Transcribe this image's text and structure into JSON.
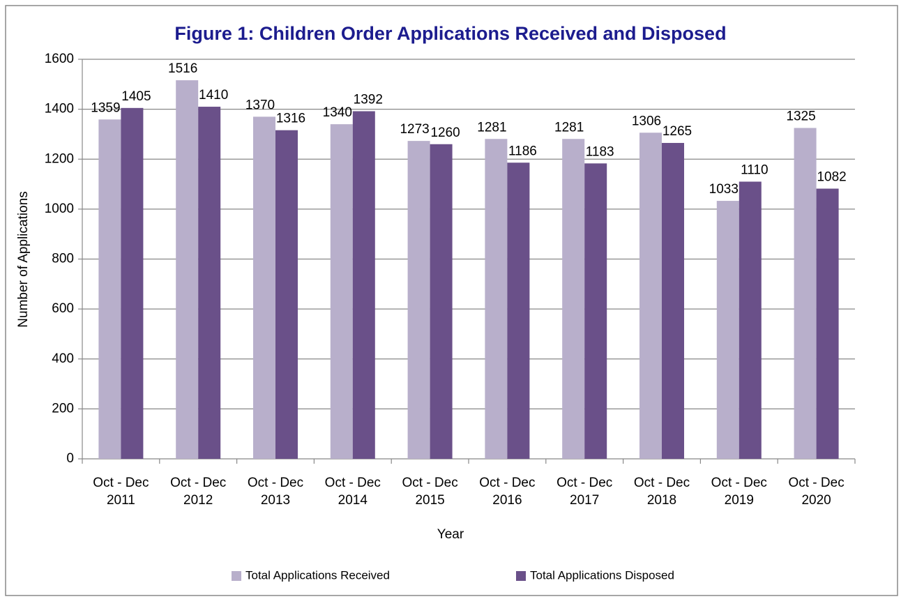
{
  "chart_data": {
    "type": "bar",
    "title": "Figure 1: Children Order Applications  Received and Disposed",
    "x_label": "Year",
    "y_label": "Number of Applications",
    "categories": [
      "Oct - Dec 2011",
      "Oct - Dec 2012",
      "Oct - Dec 2013",
      "Oct - Dec 2014",
      "Oct - Dec 2015",
      "Oct - Dec 2016",
      "Oct - Dec 2017",
      "Oct - Dec 2018",
      "Oct - Dec 2019",
      "Oct - Dec 2020"
    ],
    "series": [
      {
        "name": "Total Applications Received",
        "color": "#b8afcb",
        "values": [
          1359,
          1516,
          1370,
          1340,
          1273,
          1281,
          1281,
          1306,
          1033,
          1325
        ]
      },
      {
        "name": "Total Applications Disposed",
        "color": "#6a5089",
        "values": [
          1405,
          1410,
          1316,
          1392,
          1260,
          1186,
          1183,
          1265,
          1110,
          1082
        ]
      }
    ],
    "ylim": [
      0,
      1600
    ],
    "yticks": [
      0,
      200,
      400,
      600,
      800,
      1000,
      1200,
      1400,
      1600
    ],
    "grid": true,
    "legend": "bottom"
  }
}
